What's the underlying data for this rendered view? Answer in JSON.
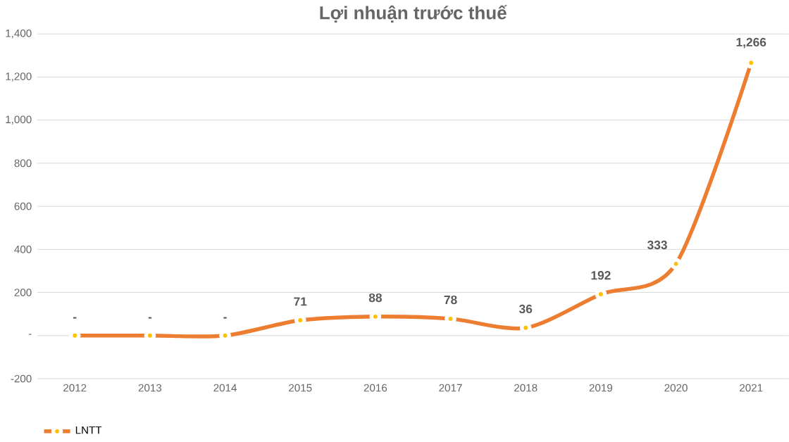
{
  "chart_data": {
    "type": "line",
    "title": "Lợi nhuận trước thuế",
    "categories": [
      "2012",
      "2013",
      "2014",
      "2015",
      "2016",
      "2017",
      "2018",
      "2019",
      "2020",
      "2021"
    ],
    "series": [
      {
        "name": "LNTT",
        "color": "#ed7d31",
        "values": [
          0,
          0,
          0,
          71,
          88,
          78,
          36,
          192,
          333,
          1266
        ],
        "value_labels": [
          "-",
          "-",
          "-",
          "71",
          "88",
          "78",
          "36",
          "192",
          "333",
          "1,266"
        ]
      }
    ],
    "ylim": [
      -200,
      1400
    ],
    "yticks": [
      -200,
      {
        "value": 0,
        "label": "-"
      },
      200,
      400,
      600,
      800,
      {
        "value": 1000,
        "label": "1,000"
      },
      {
        "value": 1200,
        "label": "1,200"
      },
      {
        "value": 1400,
        "label": "1,400"
      }
    ],
    "grid": "y",
    "legend": "bottom left",
    "marker": "circle",
    "line_style": "solid"
  }
}
